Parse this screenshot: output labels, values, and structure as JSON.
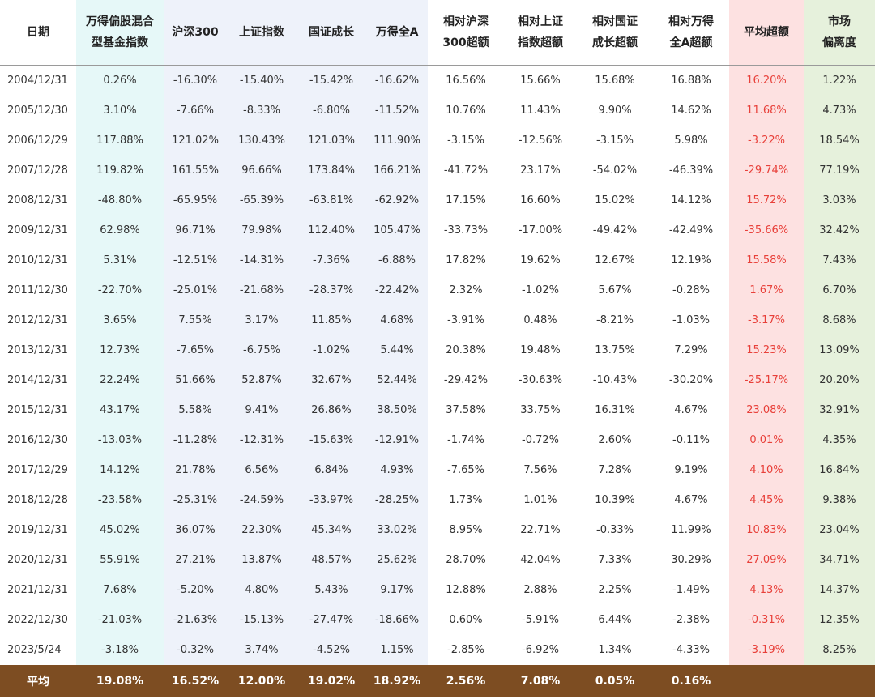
{
  "table": {
    "headers": [
      [
        "日期"
      ],
      [
        "万得偏股混合",
        "型基金指数"
      ],
      [
        "沪深300"
      ],
      [
        "上证指数"
      ],
      [
        "国证成长"
      ],
      [
        "万得全A"
      ],
      [
        "相对沪深",
        "300超额"
      ],
      [
        "相对上证",
        "指数超额"
      ],
      [
        "相对国证",
        "成长超额"
      ],
      [
        "相对万得",
        "全A超额"
      ],
      [
        "平均超额"
      ],
      [
        "市场",
        "偏离度"
      ]
    ],
    "rows": [
      [
        "2004/12/31",
        "0.26%",
        "-16.30%",
        "-15.40%",
        "-15.42%",
        "-16.62%",
        "16.56%",
        "15.66%",
        "15.68%",
        "16.88%",
        "16.20%",
        "1.22%"
      ],
      [
        "2005/12/30",
        "3.10%",
        "-7.66%",
        "-8.33%",
        "-6.80%",
        "-11.52%",
        "10.76%",
        "11.43%",
        "9.90%",
        "14.62%",
        "11.68%",
        "4.73%"
      ],
      [
        "2006/12/29",
        "117.88%",
        "121.02%",
        "130.43%",
        "121.03%",
        "111.90%",
        "-3.15%",
        "-12.56%",
        "-3.15%",
        "5.98%",
        "-3.22%",
        "18.54%"
      ],
      [
        "2007/12/28",
        "119.82%",
        "161.55%",
        "96.66%",
        "173.84%",
        "166.21%",
        "-41.72%",
        "23.17%",
        "-54.02%",
        "-46.39%",
        "-29.74%",
        "77.19%"
      ],
      [
        "2008/12/31",
        "-48.80%",
        "-65.95%",
        "-65.39%",
        "-63.81%",
        "-62.92%",
        "17.15%",
        "16.60%",
        "15.02%",
        "14.12%",
        "15.72%",
        "3.03%"
      ],
      [
        "2009/12/31",
        "62.98%",
        "96.71%",
        "79.98%",
        "112.40%",
        "105.47%",
        "-33.73%",
        "-17.00%",
        "-49.42%",
        "-42.49%",
        "-35.66%",
        "32.42%"
      ],
      [
        "2010/12/31",
        "5.31%",
        "-12.51%",
        "-14.31%",
        "-7.36%",
        "-6.88%",
        "17.82%",
        "19.62%",
        "12.67%",
        "12.19%",
        "15.58%",
        "7.43%"
      ],
      [
        "2011/12/30",
        "-22.70%",
        "-25.01%",
        "-21.68%",
        "-28.37%",
        "-22.42%",
        "2.32%",
        "-1.02%",
        "5.67%",
        "-0.28%",
        "1.67%",
        "6.70%"
      ],
      [
        "2012/12/31",
        "3.65%",
        "7.55%",
        "3.17%",
        "11.85%",
        "4.68%",
        "-3.91%",
        "0.48%",
        "-8.21%",
        "-1.03%",
        "-3.17%",
        "8.68%"
      ],
      [
        "2013/12/31",
        "12.73%",
        "-7.65%",
        "-6.75%",
        "-1.02%",
        "5.44%",
        "20.38%",
        "19.48%",
        "13.75%",
        "7.29%",
        "15.23%",
        "13.09%"
      ],
      [
        "2014/12/31",
        "22.24%",
        "51.66%",
        "52.87%",
        "32.67%",
        "52.44%",
        "-29.42%",
        "-30.63%",
        "-10.43%",
        "-30.20%",
        "-25.17%",
        "20.20%"
      ],
      [
        "2015/12/31",
        "43.17%",
        "5.58%",
        "9.41%",
        "26.86%",
        "38.50%",
        "37.58%",
        "33.75%",
        "16.31%",
        "4.67%",
        "23.08%",
        "32.91%"
      ],
      [
        "2016/12/30",
        "-13.03%",
        "-11.28%",
        "-12.31%",
        "-15.63%",
        "-12.91%",
        "-1.74%",
        "-0.72%",
        "2.60%",
        "-0.11%",
        "0.01%",
        "4.35%"
      ],
      [
        "2017/12/29",
        "14.12%",
        "21.78%",
        "6.56%",
        "6.84%",
        "4.93%",
        "-7.65%",
        "7.56%",
        "7.28%",
        "9.19%",
        "4.10%",
        "16.84%"
      ],
      [
        "2018/12/28",
        "-23.58%",
        "-25.31%",
        "-24.59%",
        "-33.97%",
        "-28.25%",
        "1.73%",
        "1.01%",
        "10.39%",
        "4.67%",
        "4.45%",
        "9.38%"
      ],
      [
        "2019/12/31",
        "45.02%",
        "36.07%",
        "22.30%",
        "45.34%",
        "33.02%",
        "8.95%",
        "22.71%",
        "-0.33%",
        "11.99%",
        "10.83%",
        "23.04%"
      ],
      [
        "2020/12/31",
        "55.91%",
        "27.21%",
        "13.87%",
        "48.57%",
        "25.62%",
        "28.70%",
        "42.04%",
        "7.33%",
        "30.29%",
        "27.09%",
        "34.71%"
      ],
      [
        "2021/12/31",
        "7.68%",
        "-5.20%",
        "4.80%",
        "5.43%",
        "9.17%",
        "12.88%",
        "2.88%",
        "2.25%",
        "-1.49%",
        "4.13%",
        "14.37%"
      ],
      [
        "2022/12/30",
        "-21.03%",
        "-21.63%",
        "-15.13%",
        "-27.47%",
        "-18.66%",
        "0.60%",
        "-5.91%",
        "6.44%",
        "-2.38%",
        "-0.31%",
        "12.35%"
      ],
      [
        "2023/5/24",
        "-3.18%",
        "-0.32%",
        "3.74%",
        "-4.52%",
        "1.15%",
        "-2.85%",
        "-6.92%",
        "1.34%",
        "-4.33%",
        "-3.19%",
        "8.25%"
      ]
    ],
    "total": [
      "平均",
      "19.08%",
      "16.52%",
      "12.00%",
      "19.02%",
      "18.92%",
      "2.56%",
      "7.08%",
      "0.05%",
      "0.16%",
      "",
      ""
    ]
  },
  "colors": {
    "fund_column_bg": "#e6f8f8",
    "index_columns_bg": "#eef2fa",
    "avg_excess_bg": "#fde1e1",
    "avg_excess_text": "#e8403a",
    "deviation_bg": "#e6f1dc",
    "total_row_bg": "#7d4d22"
  }
}
